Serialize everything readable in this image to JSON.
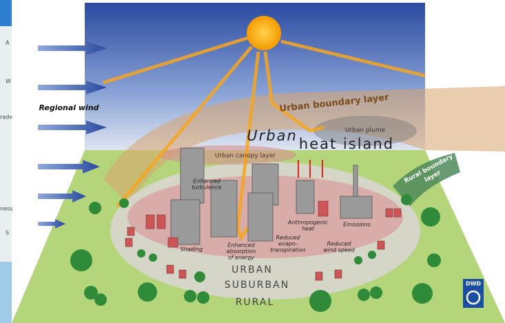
{
  "labels": {
    "regional_wind": "Regional wind",
    "urban_boundary_layer": "Urban boundary layer",
    "urban": "Urban",
    "heat_island": "heat island",
    "urban_plume": "Urban plume",
    "urban_canopy_layer": "Urban canopy layer",
    "rural_boundary_layer": [
      "Rural boundary",
      "layer"
    ],
    "enhanced_turbulence": [
      "Enhanced",
      "turbulence"
    ],
    "shading": "Shading",
    "enhanced_absorption": [
      "Enhanced",
      "absorption",
      "of energy"
    ],
    "reduced_evapotranspiration": [
      "Reduced",
      "evapo-",
      "transpiration"
    ],
    "anthropogenic_heat": [
      "Anthropogenic",
      "heat"
    ],
    "emissions": "Emissions",
    "reduced_wind_speed": [
      "Reduced",
      "wind speed"
    ],
    "zone_urban": "URBAN",
    "zone_suburban": "SUBURBAN",
    "zone_rural": "RURAL",
    "logo": "DWD"
  },
  "map_fragments": [
    "A",
    "W",
    "radv",
    "ness",
    "S"
  ]
}
